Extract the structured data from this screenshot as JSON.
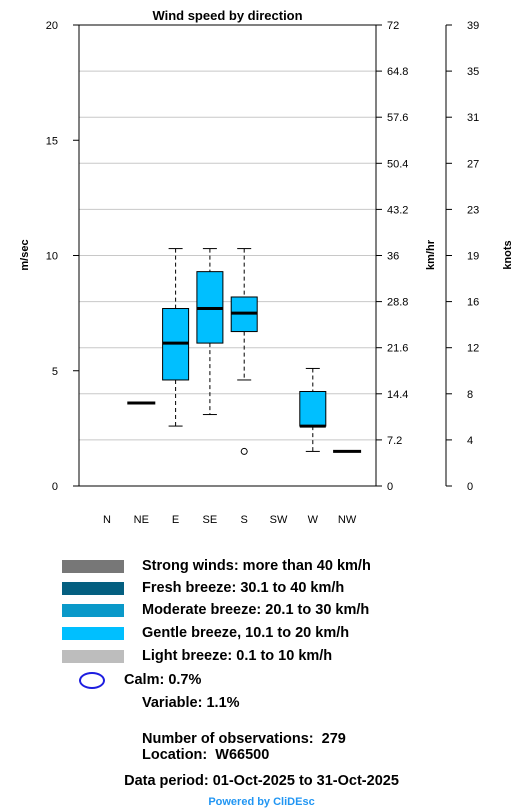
{
  "chart_data": {
    "type": "box",
    "title": "Wind speed by direction",
    "y_left": {
      "label": "m/sec",
      "ylim": [
        0,
        20
      ],
      "ticks": [
        "0",
        "5",
        "10",
        "15",
        "20"
      ]
    },
    "y_mid": {
      "label": "km/hr",
      "ticks": [
        "0",
        "7.2",
        "14.4",
        "21.6",
        "28.8",
        "36",
        "43.2",
        "50.4",
        "57.6",
        "64.8",
        "72"
      ]
    },
    "y_right": {
      "label": "knots",
      "ticks": [
        "0",
        "4",
        "8",
        "12",
        "16",
        "19",
        "23",
        "27",
        "31",
        "35",
        "39"
      ]
    },
    "categories": [
      "N",
      "NE",
      "E",
      "SE",
      "S",
      "SW",
      "W",
      "NW"
    ],
    "boxes": [
      {
        "direction": "NE",
        "single_value": 3.6
      },
      {
        "direction": "E",
        "min": 2.6,
        "q1": 4.6,
        "median": 6.2,
        "q3": 7.7,
        "max": 10.3
      },
      {
        "direction": "SE",
        "min": 3.1,
        "q1": 6.2,
        "median": 7.7,
        "q3": 9.3,
        "max": 10.3
      },
      {
        "direction": "S",
        "min": 4.6,
        "q1": 6.7,
        "median": 7.5,
        "q3": 8.2,
        "max": 10.3,
        "outliers": [
          1.5
        ]
      },
      {
        "direction": "W",
        "min": 1.5,
        "q1": 2.6,
        "median": 2.6,
        "q3": 4.1,
        "max": 5.1
      },
      {
        "direction": "NW",
        "single_value": 1.5
      }
    ],
    "box_color": "#00bfff",
    "grid": true
  },
  "legend": [
    {
      "label": "Strong winds: more than 40 km/h",
      "color": "#777777"
    },
    {
      "label": "Fresh breeze: 30.1 to 40 km/h",
      "color": "#045f80"
    },
    {
      "label": "Moderate breeze: 20.1 to 30 km/h",
      "color": "#0a99c9"
    },
    {
      "label": "Gentle breeze, 10.1 to 20 km/h",
      "color": "#00bfff"
    },
    {
      "label": "Light breeze: 0.1 to 10 km/h",
      "color": "#bdbdbd"
    }
  ],
  "calm_text": "Calm: 0.7%",
  "calm_color": "#1d1de0",
  "variable_text": "Variable: 1.1%",
  "observations_text": "Number of observations:  279",
  "location_text": "Location:  W66500",
  "period_text": "Data period: 01-Oct-2025 to 31-Oct-2025",
  "powered_text": "Powered by CliDEsc"
}
